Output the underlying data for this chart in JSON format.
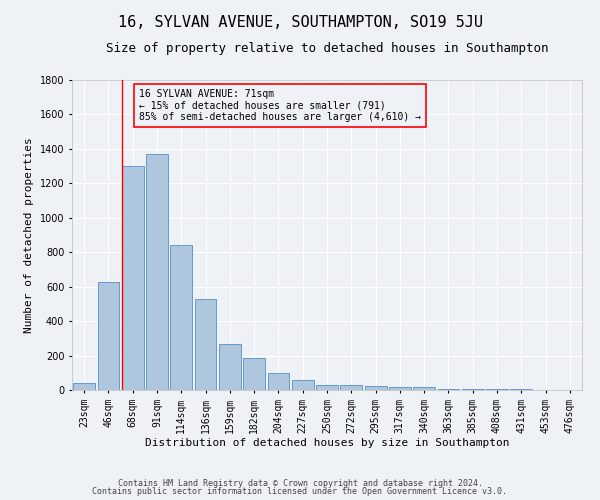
{
  "title": "16, SYLVAN AVENUE, SOUTHAMPTON, SO19 5JU",
  "subtitle": "Size of property relative to detached houses in Southampton",
  "xlabel": "Distribution of detached houses by size in Southampton",
  "ylabel": "Number of detached properties",
  "categories": [
    "23sqm",
    "46sqm",
    "68sqm",
    "91sqm",
    "114sqm",
    "136sqm",
    "159sqm",
    "182sqm",
    "204sqm",
    "227sqm",
    "250sqm",
    "272sqm",
    "295sqm",
    "317sqm",
    "340sqm",
    "363sqm",
    "385sqm",
    "408sqm",
    "431sqm",
    "453sqm",
    "476sqm"
  ],
  "values": [
    40,
    630,
    1300,
    1370,
    840,
    530,
    270,
    185,
    100,
    60,
    30,
    30,
    25,
    18,
    15,
    8,
    5,
    5,
    3,
    2,
    2
  ],
  "bar_color": "#aec6de",
  "bar_edgecolor": "#6699cc",
  "ylim": [
    0,
    1800
  ],
  "yticks": [
    0,
    200,
    400,
    600,
    800,
    1000,
    1200,
    1400,
    1600,
    1800
  ],
  "annotation_text": "16 SYLVAN AVENUE: 71sqm\n← 15% of detached houses are smaller (791)\n85% of semi-detached houses are larger (4,610) →",
  "footer1": "Contains HM Land Registry data © Crown copyright and database right 2024.",
  "footer2": "Contains public sector information licensed under the Open Government Licence v3.0.",
  "bg_color": "#eef2f7",
  "grid_color": "#ffffff",
  "title_fontsize": 11,
  "subtitle_fontsize": 9,
  "xlabel_fontsize": 8,
  "ylabel_fontsize": 8,
  "tick_fontsize": 7,
  "redline_index": 2
}
